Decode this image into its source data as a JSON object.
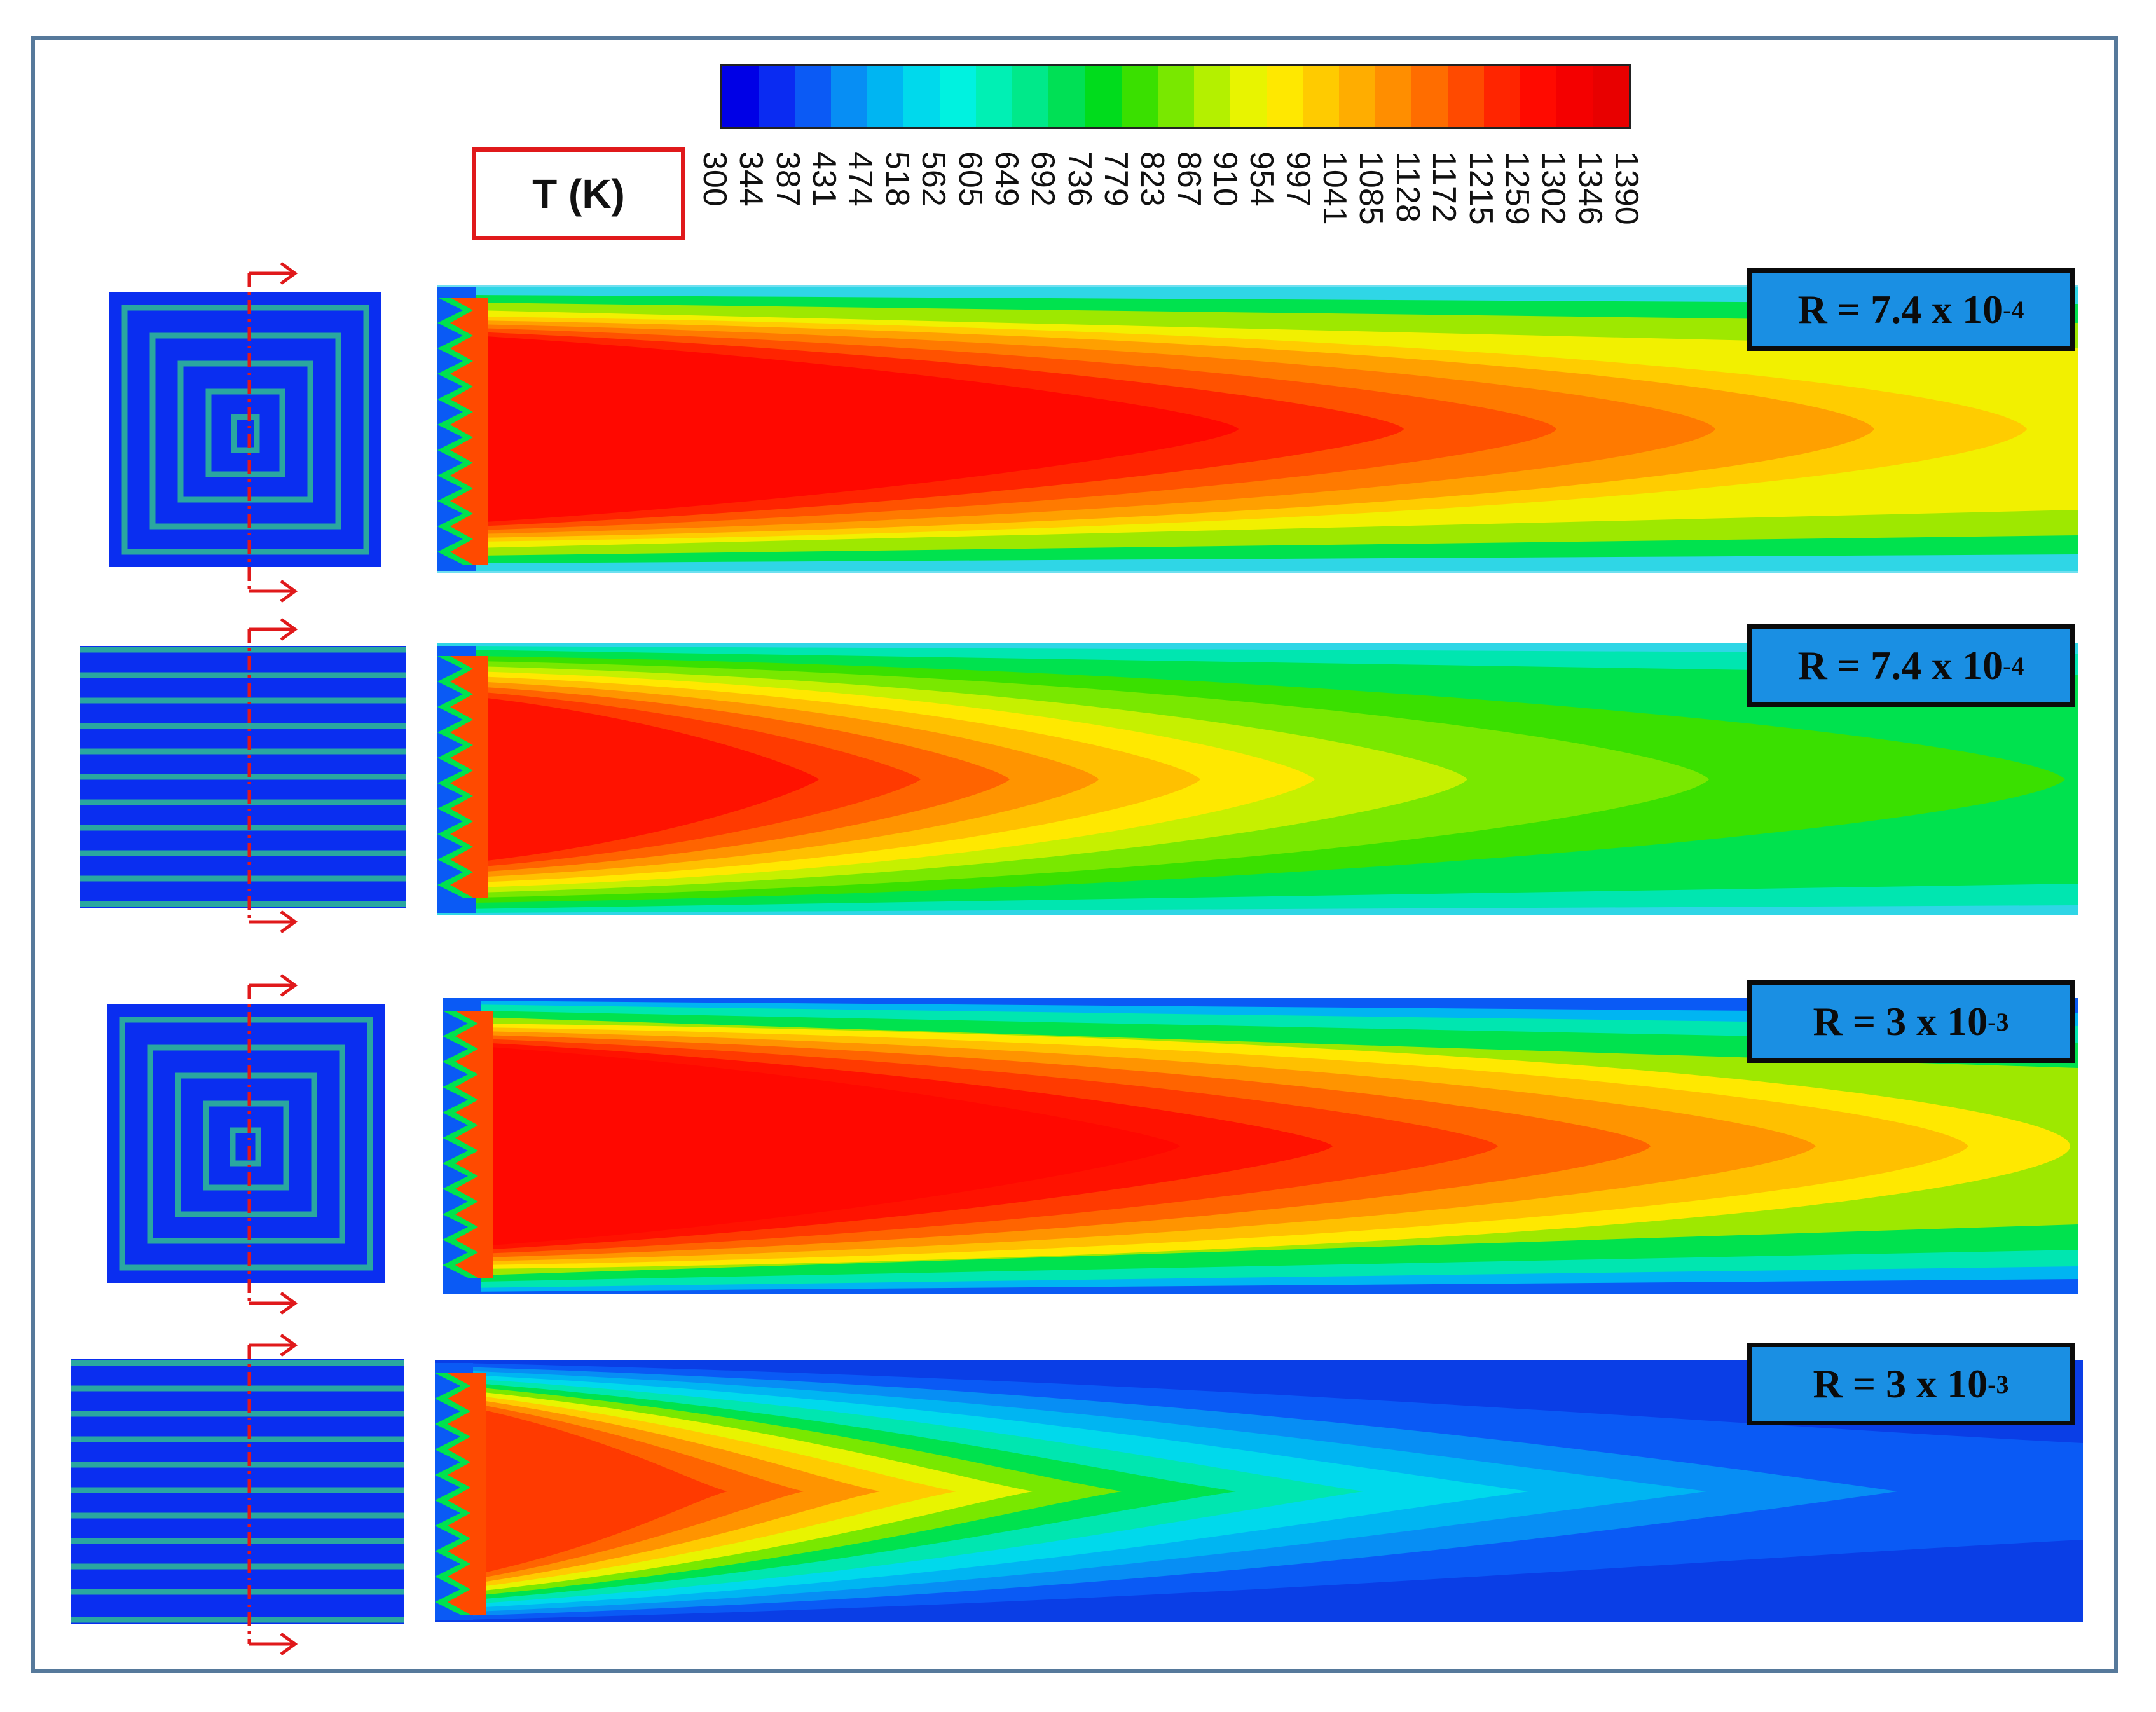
{
  "legend": {
    "unit_label": "T (K)",
    "tick_values": [
      "300",
      "344",
      "387",
      "431",
      "474",
      "518",
      "562",
      "605",
      "649",
      "692",
      "736",
      "779",
      "823",
      "867",
      "910",
      "954",
      "997",
      "1041",
      "1085",
      "1128",
      "1172",
      "1215",
      "1259",
      "1302",
      "1346",
      "1390"
    ],
    "colors": [
      "#0000e6",
      "#0a2bf2",
      "#0b5af5",
      "#078ef4",
      "#00b5f2",
      "#00d9ec",
      "#00f2e0",
      "#00f0b4",
      "#00e98a",
      "#00e055",
      "#00dc1c",
      "#3ae000",
      "#79e800",
      "#b4f000",
      "#e8f400",
      "#ffe800",
      "#ffcb00",
      "#ffad00",
      "#ff8e00",
      "#ff6d00",
      "#ff4a00",
      "#ff2500",
      "#ff0a00",
      "#f40000",
      "#e80000"
    ]
  },
  "cases": [
    {
      "pattern": "spiral",
      "ratio_base": "R = 7.4 x 10",
      "ratio_exp": "-4"
    },
    {
      "pattern": "parallel",
      "ratio_base": "R = 7.4 x 10",
      "ratio_exp": "-4"
    },
    {
      "pattern": "spiral",
      "ratio_base": "R = 3 x 10",
      "ratio_exp": "-3"
    },
    {
      "pattern": "parallel",
      "ratio_base": "R = 3 x 10",
      "ratio_exp": "-3"
    }
  ],
  "colors": {
    "frame": "#56799b",
    "label_fill": "#1a8fe3",
    "section_line": "#e0191b",
    "channel_wall": "#2aa7a0",
    "thumb_fill": "#0a2ef0"
  }
}
